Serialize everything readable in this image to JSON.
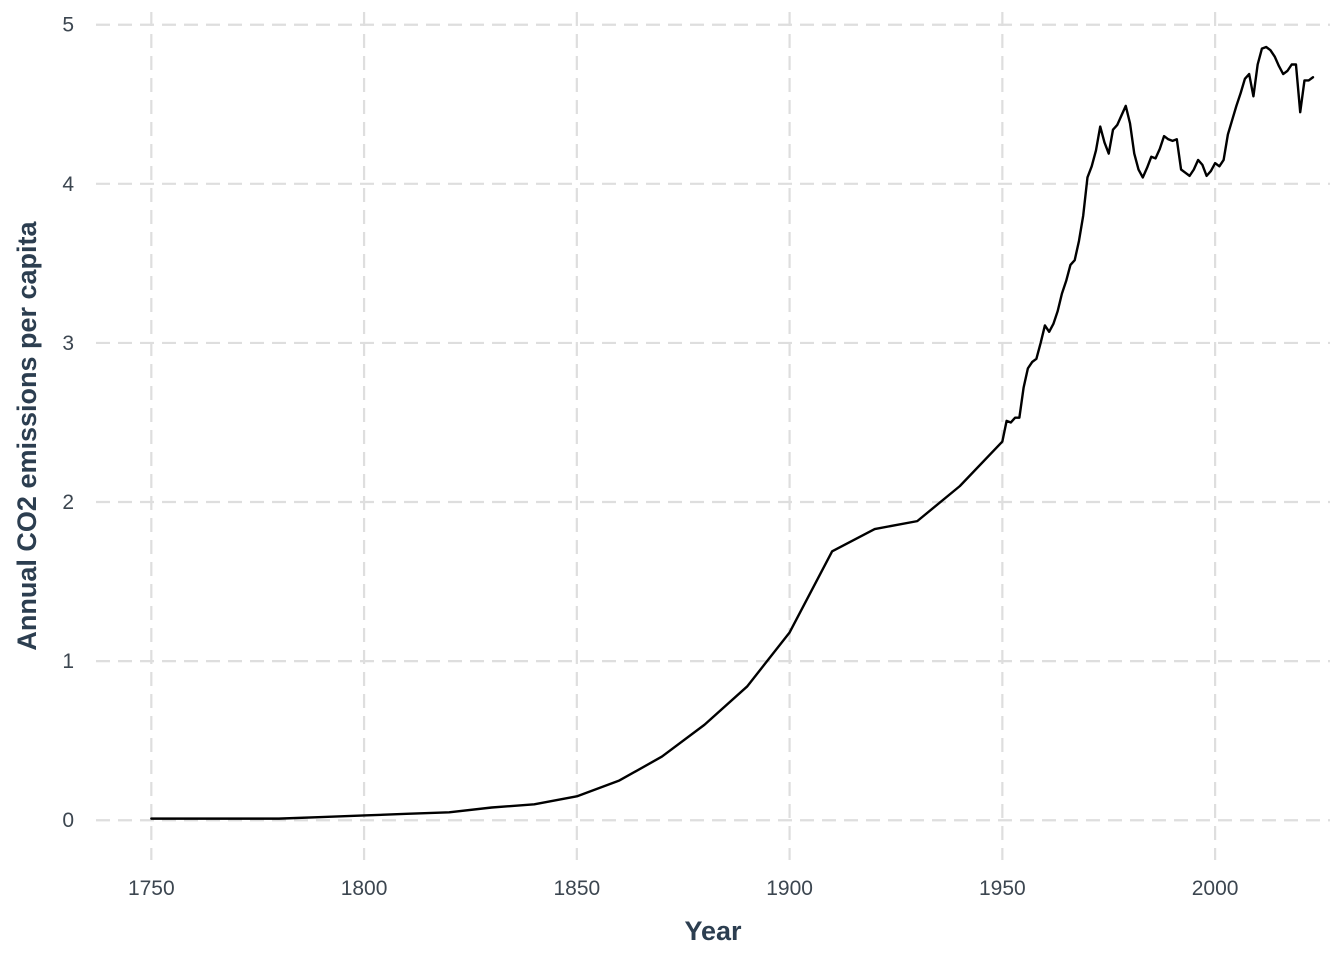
{
  "chart_data": {
    "type": "line",
    "title": "",
    "xlabel": "Year",
    "ylabel": "Annual CO2 emissions per capita",
    "xlim": [
      1737,
      2027
    ],
    "ylim": [
      -0.25,
      5.08
    ],
    "x_ticks": [
      1750,
      1800,
      1850,
      1900,
      1950,
      2000
    ],
    "y_ticks": [
      0,
      1,
      2,
      3,
      4,
      5
    ],
    "grid": true,
    "legend": "none",
    "line_color": "#000000",
    "series": [
      {
        "x": [
          1750,
          1760,
          1770,
          1780,
          1790,
          1800,
          1810,
          1820,
          1830,
          1840,
          1850,
          1860,
          1870,
          1880,
          1890,
          1900,
          1910,
          1920,
          1930,
          1940,
          1950,
          1951,
          1952,
          1953,
          1954,
          1955,
          1956,
          1957,
          1958,
          1959,
          1960,
          1961,
          1962,
          1963,
          1964,
          1965,
          1966,
          1967,
          1968,
          1969,
          1970,
          1971,
          1972,
          1973,
          1974,
          1975,
          1976,
          1977,
          1978,
          1979,
          1980,
          1981,
          1982,
          1983,
          1984,
          1985,
          1986,
          1987,
          1988,
          1989,
          1990,
          1991,
          1992,
          1993,
          1994,
          1995,
          1996,
          1997,
          1998,
          1999,
          2000,
          2001,
          2002,
          2003,
          2004,
          2005,
          2006,
          2007,
          2008,
          2009,
          2010,
          2011,
          2012,
          2013,
          2014,
          2015,
          2016,
          2017,
          2018,
          2019,
          2020,
          2021,
          2022,
          2023
        ],
        "values": [
          0.01,
          0.01,
          0.01,
          0.01,
          0.02,
          0.03,
          0.04,
          0.05,
          0.08,
          0.1,
          0.15,
          0.25,
          0.4,
          0.6,
          0.84,
          1.18,
          1.69,
          1.83,
          1.88,
          2.1,
          2.38,
          2.51,
          2.5,
          2.53,
          2.53,
          2.72,
          2.84,
          2.88,
          2.9,
          3.0,
          3.11,
          3.07,
          3.12,
          3.2,
          3.31,
          3.39,
          3.49,
          3.52,
          3.64,
          3.8,
          4.04,
          4.11,
          4.21,
          4.36,
          4.26,
          4.19,
          4.34,
          4.37,
          4.43,
          4.49,
          4.38,
          4.19,
          4.09,
          4.04,
          4.1,
          4.17,
          4.16,
          4.22,
          4.3,
          4.28,
          4.27,
          4.28,
          4.09,
          4.07,
          4.05,
          4.09,
          4.15,
          4.12,
          4.05,
          4.08,
          4.13,
          4.11,
          4.15,
          4.31,
          4.4,
          4.49,
          4.57,
          4.66,
          4.69,
          4.55,
          4.75,
          4.85,
          4.86,
          4.84,
          4.8,
          4.74,
          4.69,
          4.71,
          4.75,
          4.75,
          4.45,
          4.65,
          4.65,
          4.67
        ]
      }
    ]
  }
}
